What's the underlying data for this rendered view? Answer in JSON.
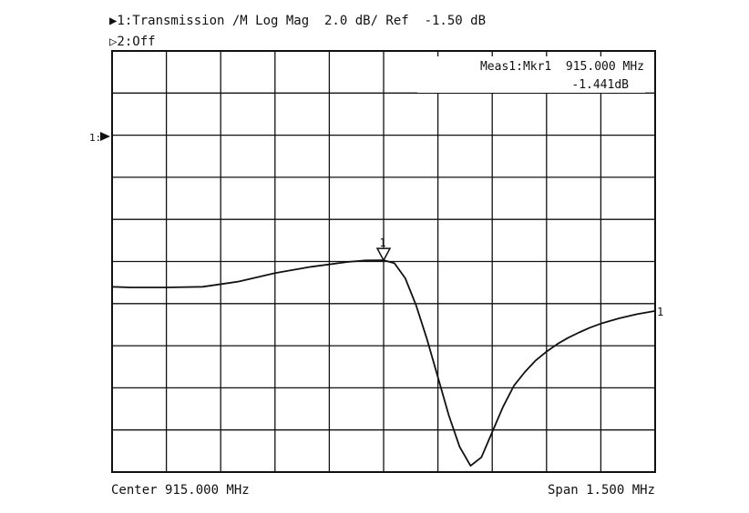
{
  "header": {
    "channel1_label": "▶1:Transmission /M Log Mag  2.0 dB/ Ref  -1.50 dB",
    "channel2_label": "▷2:Off"
  },
  "marker_readout": {
    "line1": "Meas1:Mkr1  915.000 MHz",
    "line2": "-1.441dB"
  },
  "ref_marker_label": "1:",
  "trace_end_label": "1",
  "marker_label": "1",
  "footer": {
    "center": "Center 915.000 MHz",
    "span": "Span 1.500 MHz"
  },
  "chart_data": {
    "type": "line",
    "title": "",
    "xlabel": "",
    "ylabel": "",
    "x_unit": "MHz",
    "y_unit": "dB",
    "xlim": [
      914.25,
      915.75
    ],
    "ylim": [
      -11.5,
      8.5
    ],
    "scale_db_per_div": 2.0,
    "ref_level_db": -1.5,
    "grid": true,
    "series": [
      {
        "x": [
          914.25,
          914.3,
          914.4,
          914.5,
          914.6,
          914.7,
          914.8,
          914.9,
          914.95,
          915.0,
          915.03,
          915.06,
          915.09,
          915.12,
          915.15,
          915.18,
          915.21,
          915.24,
          915.27,
          915.3,
          915.33,
          915.36,
          915.39,
          915.42,
          915.45,
          915.48,
          915.51,
          915.54,
          915.57,
          915.6,
          915.65,
          915.7,
          915.75
        ],
        "values": [
          -2.7,
          -2.73,
          -2.73,
          -2.7,
          -2.45,
          -2.05,
          -1.75,
          -1.52,
          -1.45,
          -1.441,
          -1.58,
          -2.3,
          -3.6,
          -5.2,
          -7.0,
          -8.8,
          -10.3,
          -11.2,
          -10.8,
          -9.6,
          -8.4,
          -7.4,
          -6.75,
          -6.2,
          -5.78,
          -5.42,
          -5.12,
          -4.87,
          -4.64,
          -4.45,
          -4.2,
          -4.0,
          -3.85
        ]
      }
    ],
    "markers": [
      {
        "name": "1",
        "x": 915.0,
        "y": -1.441
      }
    ]
  }
}
